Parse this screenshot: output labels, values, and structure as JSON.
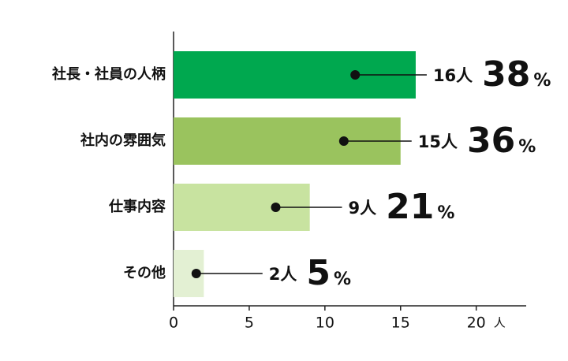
{
  "chart_data": {
    "type": "bar",
    "orientation": "horizontal",
    "categories": [
      "社長・社員の人柄",
      "社内の雰囲気",
      "仕事内容",
      "その他"
    ],
    "values": [
      16,
      15,
      9,
      2
    ],
    "value_labels": [
      "16人",
      "15人",
      "9人",
      "2人"
    ],
    "percents": [
      38,
      36,
      21,
      5
    ],
    "percent_unit": "%",
    "colors": [
      "#00a84f",
      "#9ac35e",
      "#c8e3a0",
      "#e3f0d3"
    ],
    "xlim": [
      0,
      23.3
    ],
    "xticks": [
      0,
      5,
      10,
      15,
      20
    ],
    "x_unit": "人",
    "grid": false
  }
}
